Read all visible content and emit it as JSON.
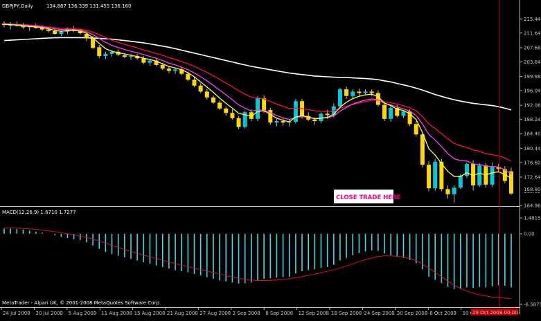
{
  "window": {
    "symbol_header": "GBPJPY,Daily",
    "ohlc": "134.887 136.339 131.455 136.160",
    "macd_header": "MACD(12,26,9) 1.6710 1.7277",
    "copyright": "MetaTrader - Alpari UK, © 2001-2008 MetaQuotes Software Corp.",
    "annotation": "CLOSE TRADE HERE",
    "current_price_label": "168.800",
    "cursor_date_label": "29 Oct 2008 00:00"
  },
  "colors": {
    "background": "#000000",
    "bull_candle": "#00c8d8",
    "bear_candle": "#ffd800",
    "ma_fast": "#ffff40",
    "ma_mid": "#ff40ff",
    "ma_slow": "#ff1040",
    "ma_long": "#ffffff",
    "macd_hist": "#40d8e8",
    "macd_signal": "#e01030",
    "vline": "#c00000",
    "annotation_bg": "#ffffff",
    "annotation_text": "#ff0080"
  },
  "chart_data": {
    "type": "candlestick",
    "price_axis_labels": [
      "215.440",
      "211.640",
      "207.680",
      "203.840",
      "199.880",
      "196.040",
      "192.080",
      "188.240",
      "184.400",
      "180.440",
      "176.600",
      "172.640",
      "168.800",
      "164.960"
    ],
    "price_ylim": [
      164.96,
      217.4
    ],
    "macd_axis_labels": [
      "1.4815",
      "0.00",
      "-6.5875"
    ],
    "macd_ylim": [
      -6.5875,
      1.4815
    ],
    "date_axis_labels": [
      "24 Jul 2008",
      "30 Jul 2008",
      "5 Aug 2008",
      "11 Aug 2008",
      "15 Aug 2008",
      "21 Aug 2008",
      "27 Aug 2008",
      "2 Sep 2008",
      "8 Sep 2008",
      "12 Sep 2008",
      "18 Sep 2008",
      "24 Sep 2008",
      "30 Sep 2008",
      "6 Oct 2008",
      "10 Oct 2008"
    ],
    "candles": [
      [
        214.2,
        214.8,
        213.2,
        213.8
      ],
      [
        213.6,
        214.6,
        212.6,
        214.0
      ],
      [
        214.0,
        214.8,
        213.4,
        213.6
      ],
      [
        213.6,
        214.4,
        212.8,
        213.2
      ],
      [
        213.2,
        214.0,
        212.2,
        213.6
      ],
      [
        213.6,
        214.2,
        212.8,
        213.0
      ],
      [
        213.0,
        213.8,
        212.2,
        212.6
      ],
      [
        212.6,
        213.4,
        211.8,
        212.2
      ],
      [
        212.2,
        212.8,
        211.2,
        211.4
      ],
      [
        211.4,
        212.4,
        210.8,
        212.0
      ],
      [
        212.0,
        213.2,
        211.4,
        212.8
      ],
      [
        212.8,
        213.6,
        212.0,
        212.2
      ],
      [
        212.2,
        212.8,
        211.2,
        211.6
      ],
      [
        211.4,
        211.8,
        209.4,
        210.2
      ],
      [
        210.2,
        210.8,
        207.4,
        207.6
      ],
      [
        207.8,
        208.4,
        204.8,
        205.4
      ],
      [
        205.4,
        206.6,
        204.6,
        206.0
      ],
      [
        206.0,
        207.0,
        205.2,
        206.6
      ],
      [
        206.6,
        207.2,
        205.4,
        205.8
      ],
      [
        205.6,
        206.2,
        204.8,
        205.2
      ],
      [
        205.2,
        206.0,
        204.4,
        205.4
      ],
      [
        205.4,
        206.0,
        204.4,
        204.8
      ],
      [
        204.8,
        205.4,
        203.2,
        203.6
      ],
      [
        203.6,
        204.6,
        202.8,
        204.2
      ],
      [
        204.2,
        204.8,
        202.6,
        203.0
      ],
      [
        203.0,
        203.6,
        201.6,
        202.0
      ],
      [
        202.0,
        202.6,
        200.8,
        201.4
      ],
      [
        201.4,
        202.2,
        200.6,
        201.8
      ],
      [
        201.8,
        202.4,
        200.2,
        200.6
      ],
      [
        200.6,
        201.2,
        198.6,
        199.0
      ],
      [
        199.0,
        199.8,
        197.0,
        197.4
      ],
      [
        197.4,
        198.0,
        195.4,
        195.8
      ],
      [
        195.8,
        196.6,
        193.6,
        194.2
      ],
      [
        194.2,
        194.8,
        192.4,
        192.8
      ],
      [
        192.8,
        193.4,
        190.8,
        191.2
      ],
      [
        191.2,
        191.8,
        189.2,
        190.0
      ],
      [
        190.0,
        191.0,
        188.2,
        188.6
      ],
      [
        188.6,
        189.2,
        185.6,
        186.2
      ],
      [
        186.2,
        190.6,
        185.8,
        190.2
      ],
      [
        190.2,
        191.0,
        187.8,
        188.4
      ],
      [
        188.4,
        194.6,
        187.8,
        194.0
      ],
      [
        194.0,
        194.8,
        190.0,
        190.8
      ],
      [
        190.8,
        191.4,
        186.8,
        187.4
      ],
      [
        187.4,
        188.4,
        186.4,
        187.8
      ],
      [
        187.8,
        188.6,
        186.6,
        187.4
      ],
      [
        187.4,
        188.4,
        186.4,
        187.6
      ],
      [
        187.6,
        193.8,
        187.2,
        193.2
      ],
      [
        193.2,
        193.8,
        188.4,
        189.2
      ],
      [
        189.2,
        190.2,
        187.8,
        188.2
      ],
      [
        188.2,
        188.8,
        186.8,
        187.8
      ],
      [
        187.8,
        190.2,
        187.2,
        189.8
      ],
      [
        189.8,
        190.8,
        188.4,
        189.4
      ],
      [
        189.4,
        192.6,
        188.8,
        191.8
      ],
      [
        191.8,
        196.8,
        191.2,
        196.4
      ],
      [
        196.4,
        197.2,
        193.8,
        194.6
      ],
      [
        194.6,
        196.4,
        194.0,
        195.8
      ],
      [
        195.8,
        196.6,
        194.6,
        195.4
      ],
      [
        195.4,
        196.4,
        194.8,
        195.8
      ],
      [
        195.8,
        196.4,
        194.6,
        195.4
      ],
      [
        195.4,
        196.2,
        191.8,
        192.2
      ],
      [
        192.2,
        192.8,
        187.8,
        188.4
      ],
      [
        188.4,
        192.0,
        187.6,
        191.4
      ],
      [
        191.4,
        192.2,
        188.8,
        189.2
      ],
      [
        189.2,
        190.8,
        188.6,
        190.4
      ],
      [
        190.4,
        191.0,
        186.4,
        187.0
      ],
      [
        187.0,
        187.8,
        183.6,
        184.2
      ],
      [
        184.2,
        184.8,
        175.2,
        176.0
      ],
      [
        176.0,
        177.0,
        168.8,
        169.6
      ],
      [
        169.6,
        177.6,
        169.0,
        176.8
      ],
      [
        176.8,
        177.6,
        168.8,
        169.4
      ],
      [
        169.4,
        170.4,
        166.8,
        168.0
      ],
      [
        168.0,
        170.4,
        165.6,
        169.8
      ],
      [
        169.8,
        173.4,
        169.4,
        173.0
      ],
      [
        173.0,
        176.6,
        172.4,
        176.2
      ],
      [
        176.2,
        177.2,
        169.0,
        170.4
      ],
      [
        170.4,
        176.4,
        170.0,
        175.8
      ],
      [
        175.8,
        176.4,
        169.8,
        170.6
      ],
      [
        170.6,
        176.6,
        170.0,
        175.4
      ],
      [
        175.4,
        176.2,
        173.8,
        174.8
      ],
      [
        174.8,
        175.6,
        171.0,
        171.6
      ],
      [
        174.2,
        175.2,
        167.8,
        168.2
      ]
    ],
    "ma_fast": [
      214.0,
      213.9,
      213.8,
      213.6,
      213.4,
      213.3,
      213.1,
      212.8,
      212.4,
      212.1,
      212.3,
      212.4,
      212.2,
      211.6,
      210.4,
      208.8,
      207.4,
      206.7,
      206.3,
      206.0,
      205.6,
      205.3,
      204.8,
      204.5,
      204.0,
      203.3,
      202.6,
      202.2,
      201.7,
      200.9,
      199.8,
      198.4,
      197.0,
      195.6,
      194.0,
      192.6,
      191.3,
      189.9,
      189.5,
      189.1,
      190.4,
      190.6,
      189.6,
      188.6,
      188.0,
      187.6,
      188.9,
      189.3,
      188.9,
      188.4,
      188.6,
      188.8,
      189.6,
      191.6,
      192.9,
      193.9,
      194.5,
      194.9,
      195.1,
      194.4,
      192.7,
      192.0,
      191.0,
      190.7,
      189.8,
      188.2,
      184.7,
      180.3,
      178.6,
      176.3,
      174.2,
      172.8,
      172.8,
      173.8,
      173.1,
      173.7,
      173.2,
      173.8,
      174.1,
      173.3,
      172.3
    ],
    "ma_mid": [
      214.1,
      214.0,
      213.9,
      213.8,
      213.6,
      213.5,
      213.3,
      213.1,
      212.8,
      212.6,
      212.6,
      212.5,
      212.4,
      212.0,
      211.2,
      210.2,
      209.1,
      208.3,
      207.7,
      207.2,
      206.7,
      206.3,
      205.8,
      205.3,
      204.8,
      204.2,
      203.5,
      203.0,
      202.4,
      201.7,
      200.8,
      199.8,
      198.7,
      197.5,
      196.2,
      194.9,
      193.6,
      192.2,
      191.3,
      190.5,
      190.8,
      190.8,
      190.1,
      189.3,
      188.7,
      188.2,
      188.8,
      189.0,
      188.8,
      188.5,
      188.6,
      188.7,
      189.2,
      190.5,
      191.5,
      192.4,
      193.0,
      193.5,
      193.8,
      193.6,
      192.6,
      192.2,
      191.6,
      191.1,
      190.5,
      189.3,
      187.0,
      184.2,
      182.7,
      180.9,
      179.0,
      177.6,
      177.1,
      177.0,
      176.2,
      176.1,
      175.6,
      175.5,
      175.4,
      174.6,
      173.5
    ],
    "ma_slow": [
      214.2,
      214.1,
      214.0,
      213.9,
      213.8,
      213.7,
      213.5,
      213.3,
      213.1,
      212.9,
      212.9,
      212.8,
      212.7,
      212.4,
      211.9,
      211.2,
      210.4,
      209.7,
      209.1,
      208.6,
      208.1,
      207.6,
      207.1,
      206.6,
      206.1,
      205.6,
      205.0,
      204.5,
      203.9,
      203.3,
      202.6,
      201.8,
      201.0,
      200.1,
      199.1,
      198.1,
      197.1,
      196.0,
      195.1,
      194.3,
      194.1,
      193.8,
      193.1,
      192.4,
      191.8,
      191.2,
      191.3,
      191.2,
      190.9,
      190.6,
      190.5,
      190.4,
      190.6,
      191.3,
      191.8,
      192.3,
      192.7,
      193.1,
      193.4,
      193.5,
      193.0,
      192.8,
      192.4,
      192.0,
      191.4,
      190.6,
      189.0,
      187.0,
      185.8,
      184.4,
      183.0,
      181.8,
      181.1,
      180.7,
      180.0,
      179.6,
      179.0,
      178.7,
      178.4,
      177.8,
      176.9
    ],
    "ma_long": [
      209.6,
      209.7,
      209.8,
      209.9,
      210.0,
      210.1,
      210.2,
      210.3,
      210.35,
      210.4,
      210.4,
      210.4,
      210.4,
      210.35,
      210.3,
      210.2,
      210.1,
      210.0,
      209.8,
      209.6,
      209.4,
      209.2,
      209.0,
      208.7,
      208.4,
      208.1,
      207.8,
      207.4,
      207.0,
      206.6,
      206.2,
      205.8,
      205.4,
      205.0,
      204.6,
      204.2,
      203.8,
      203.4,
      203.0,
      202.6,
      202.3,
      202.0,
      201.7,
      201.4,
      201.1,
      200.8,
      200.6,
      200.4,
      200.2,
      200.0,
      199.9,
      199.8,
      199.7,
      199.6,
      199.6,
      199.5,
      199.4,
      199.3,
      199.2,
      199.0,
      198.7,
      198.4,
      198.0,
      197.6,
      197.2,
      196.7,
      196.2,
      195.6,
      195.0,
      194.5,
      194.0,
      193.6,
      193.2,
      192.9,
      192.6,
      192.4,
      192.2,
      192.0,
      191.7,
      191.3,
      190.8
    ],
    "macd_hist": [
      0.5,
      0.5,
      0.45,
      0.4,
      0.3,
      0.2,
      0.1,
      0.0,
      -0.15,
      -0.3,
      -0.4,
      -0.5,
      -0.6,
      -0.8,
      -1.1,
      -1.4,
      -1.7,
      -1.9,
      -2.05,
      -2.2,
      -2.35,
      -2.5,
      -2.65,
      -2.8,
      -2.95,
      -3.1,
      -3.25,
      -3.4,
      -3.5,
      -3.6,
      -3.75,
      -3.9,
      -4.05,
      -4.2,
      -4.35,
      -4.45,
      -4.55,
      -4.65,
      -4.6,
      -4.55,
      -4.35,
      -4.2,
      -4.15,
      -4.1,
      -4.05,
      -4.0,
      -3.7,
      -3.5,
      -3.4,
      -3.3,
      -3.2,
      -3.1,
      -2.9,
      -2.5,
      -2.25,
      -2.0,
      -1.8,
      -1.65,
      -1.55,
      -1.6,
      -1.85,
      -2.0,
      -2.15,
      -2.25,
      -2.45,
      -2.75,
      -3.3,
      -4.0,
      -4.3,
      -4.6,
      -4.95,
      -5.15,
      -5.15,
      -5.0,
      -5.05,
      -4.95,
      -5.0,
      -4.9,
      -4.8,
      -4.85,
      -5.0
    ],
    "macd_signal": [
      0.55,
      0.55,
      0.53,
      0.5,
      0.46,
      0.41,
      0.35,
      0.28,
      0.2,
      0.1,
      0.0,
      -0.1,
      -0.21,
      -0.34,
      -0.49,
      -0.67,
      -0.87,
      -1.08,
      -1.28,
      -1.47,
      -1.65,
      -1.82,
      -1.99,
      -2.15,
      -2.31,
      -2.47,
      -2.63,
      -2.78,
      -2.93,
      -3.06,
      -3.2,
      -3.34,
      -3.48,
      -3.62,
      -3.76,
      -3.9,
      -4.03,
      -4.15,
      -4.25,
      -4.32,
      -4.36,
      -4.36,
      -4.34,
      -4.3,
      -4.25,
      -4.2,
      -4.1,
      -4.0,
      -3.88,
      -3.76,
      -3.63,
      -3.5,
      -3.35,
      -3.18,
      -3.0,
      -2.8,
      -2.6,
      -2.42,
      -2.26,
      -2.12,
      -2.05,
      -2.05,
      -2.1,
      -2.15,
      -2.3,
      -2.5,
      -2.8,
      -3.2,
      -3.6,
      -4.0,
      -4.4,
      -4.8,
      -5.1,
      -5.35,
      -5.55,
      -5.7,
      -5.8,
      -5.9,
      -5.95,
      -6.0,
      -6.05
    ]
  }
}
